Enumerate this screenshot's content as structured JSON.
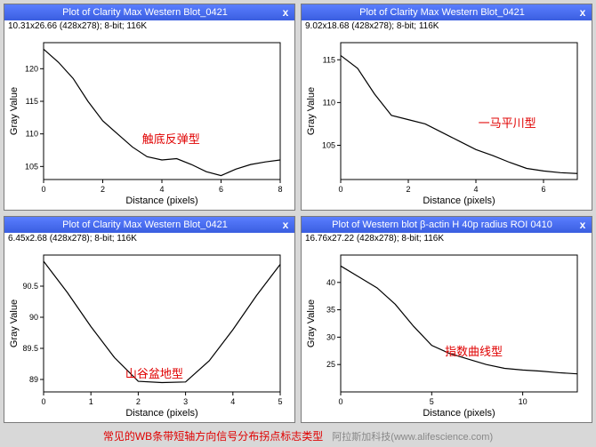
{
  "panels": [
    {
      "title": "Plot of Clarity Max Western Blot_0421",
      "meta": "10.31x26.66   (428x278); 8-bit; 116K",
      "type": "line",
      "xlabel": "Distance (pixels)",
      "ylabel": "Gray Value",
      "xlim": [
        0,
        8
      ],
      "ylim": [
        103,
        124
      ],
      "xticks": [
        0,
        2,
        4,
        6,
        8
      ],
      "yticks": [
        105,
        110,
        115,
        120
      ],
      "x": [
        0,
        0.5,
        1,
        1.5,
        2,
        2.5,
        3,
        3.5,
        4,
        4.5,
        5,
        5.5,
        6,
        6.5,
        7,
        7.5,
        8
      ],
      "y": [
        123,
        121,
        118.5,
        115,
        112,
        110,
        108,
        106.5,
        106,
        106.2,
        105.3,
        104.2,
        103.6,
        104.6,
        105.3,
        105.7,
        106
      ],
      "line_color": "#000000",
      "axis_color": "#000000",
      "annotation": {
        "text": "触底反弹型",
        "color": "#e00000",
        "left_pct": 48,
        "top_pct": 55
      }
    },
    {
      "title": "Plot of Clarity Max Western Blot_0421",
      "meta": "9.02x18.68   (428x278); 8-bit; 116K",
      "type": "line",
      "xlabel": "Distance (pixels)",
      "ylabel": "Gray Value",
      "xlim": [
        0,
        7
      ],
      "ylim": [
        101,
        117
      ],
      "xticks": [
        0,
        2,
        4,
        6
      ],
      "yticks": [
        105,
        110,
        115
      ],
      "x": [
        0,
        0.5,
        1,
        1.5,
        2,
        2.5,
        3,
        3.5,
        4,
        4.5,
        5,
        5.5,
        6,
        6.5,
        7
      ],
      "y": [
        115.5,
        114,
        111,
        108.5,
        108,
        107.5,
        106.5,
        105.5,
        104.5,
        103.8,
        103,
        102.3,
        102,
        101.8,
        101.7
      ],
      "line_color": "#000000",
      "axis_color": "#000000",
      "annotation": {
        "text": "一马平川型",
        "color": "#e00000",
        "left_pct": 62,
        "top_pct": 46
      }
    },
    {
      "title": "Plot of Clarity Max Western Blot_0421",
      "meta": "6.45x2.68   (428x278); 8-bit; 116K",
      "type": "line",
      "xlabel": "Distance (pixels)",
      "ylabel": "Gray Value",
      "xlim": [
        0,
        5
      ],
      "ylim": [
        88.8,
        91.0
      ],
      "xticks": [
        0,
        1,
        2,
        3,
        4,
        5
      ],
      "yticks": [
        89.0,
        89.5,
        90.0,
        90.5
      ],
      "x": [
        0,
        0.5,
        1,
        1.5,
        2,
        2.5,
        3,
        3.5,
        4,
        4.5,
        5
      ],
      "y": [
        90.9,
        90.4,
        89.85,
        89.35,
        88.97,
        88.95,
        88.96,
        89.3,
        89.8,
        90.35,
        90.85
      ],
      "line_color": "#000000",
      "axis_color": "#000000",
      "annotation": {
        "text": "山谷盆地型",
        "color": "#e00000",
        "left_pct": 42,
        "top_pct": 68
      }
    },
    {
      "title": "Plot of Western blot β-actin H 40p radius ROI 0410",
      "meta": "16.76x27.22   (428x278); 8-bit; 116K",
      "type": "line",
      "xlabel": "Distance (pixels)",
      "ylabel": "Gray Value",
      "xlim": [
        0,
        13
      ],
      "ylim": [
        20,
        45
      ],
      "xticks": [
        0,
        5,
        10
      ],
      "yticks": [
        25,
        30,
        35,
        40
      ],
      "x": [
        0,
        1,
        2,
        3,
        4,
        5,
        6,
        7,
        8,
        9,
        10,
        11,
        12,
        13
      ],
      "y": [
        43,
        41,
        39,
        36,
        32,
        28.5,
        27,
        26,
        25,
        24.3,
        24,
        23.8,
        23.5,
        23.3
      ],
      "line_color": "#000000",
      "axis_color": "#000000",
      "annotation": {
        "text": "指数曲线型",
        "color": "#e00000",
        "left_pct": 50,
        "top_pct": 55
      }
    }
  ],
  "caption": "常见的WB条带短轴方向信号分布拐点标志类型",
  "attribution": "阿拉斯加科技(www.alifescience.com)",
  "close_label": "x",
  "label_fontsize": 11,
  "tick_fontsize": 9,
  "background_color": "#ffffff",
  "frame_color": "#000000"
}
